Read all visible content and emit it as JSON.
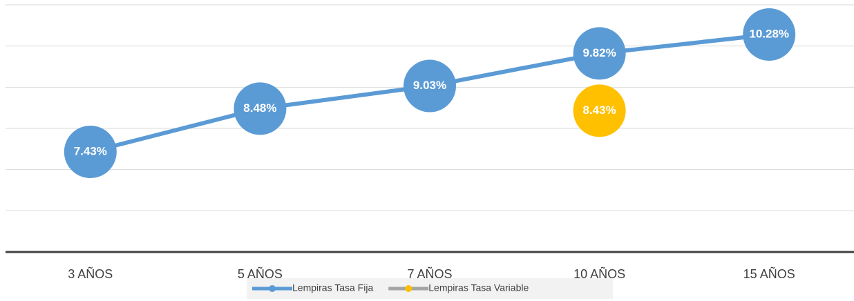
{
  "chart_data": {
    "type": "line",
    "categories": [
      "3 AÑOS",
      "5 AÑOS",
      "7 AÑOS",
      "10 AÑOS",
      "15 AÑOS"
    ],
    "series": [
      {
        "name": "Lempiras Tasa Fija",
        "color": "#5b9bd5",
        "line_color": "#5b9bd5",
        "values": [
          7.43,
          8.48,
          9.03,
          9.82,
          10.28
        ],
        "value_labels": [
          "7.43%",
          "8.48%",
          "9.03%",
          "9.82%",
          "10.28%"
        ]
      },
      {
        "name": "Lempiras Tasa Variable",
        "color": "#ffc000",
        "line_color": "#a5a5a5",
        "values": [
          null,
          null,
          null,
          8.43,
          null
        ],
        "value_labels": [
          null,
          null,
          null,
          "8.43%",
          null
        ]
      }
    ],
    "ylim": [
      5,
      11
    ],
    "yticks": [
      5,
      6,
      7,
      8,
      9,
      10,
      11
    ],
    "grid": true,
    "legend": "bottom"
  }
}
